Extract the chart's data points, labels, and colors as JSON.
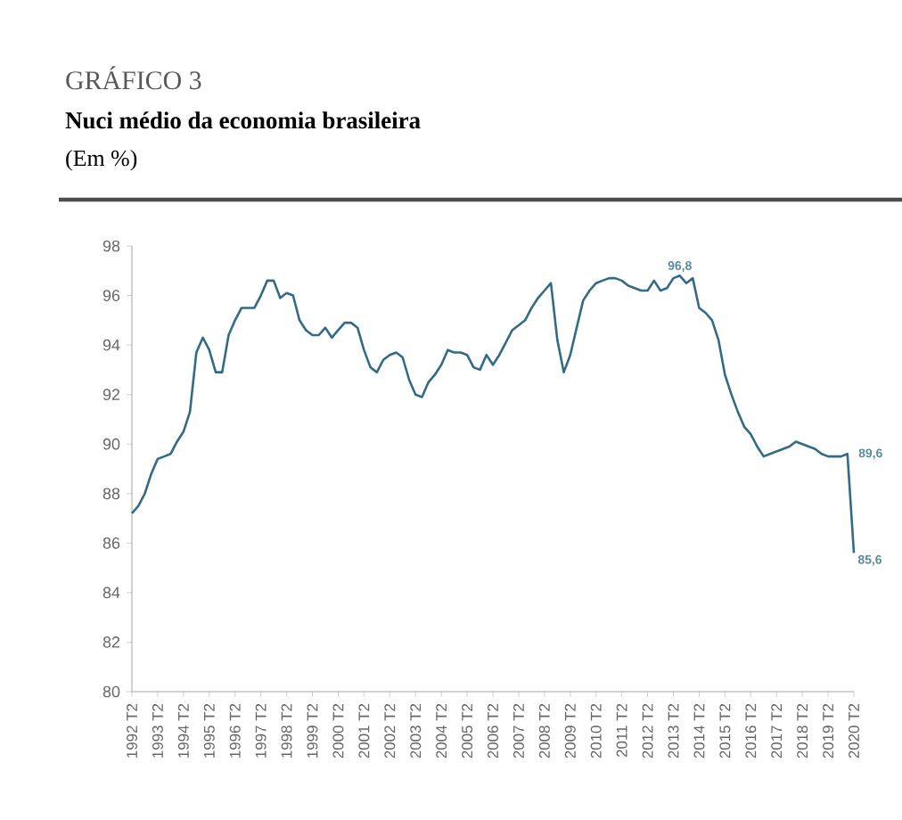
{
  "chart_data": {
    "type": "line",
    "annotations": [
      "GRÁFICO 3"
    ],
    "title": "Nuci médio da economia brasileira",
    "subtitle": "(Em %)",
    "categories": [
      "1992 T2",
      null,
      null,
      null,
      "1993 T2",
      null,
      null,
      null,
      "1994 T2",
      null,
      null,
      null,
      "1995 T2",
      null,
      null,
      null,
      "1996 T2",
      null,
      null,
      null,
      "1997 T2",
      null,
      null,
      null,
      "1998 T2",
      null,
      null,
      null,
      "1999 T2",
      null,
      null,
      null,
      "2000 T2",
      null,
      null,
      null,
      "2001 T2",
      null,
      null,
      null,
      "2002 T2",
      null,
      null,
      null,
      "2003 T2",
      null,
      null,
      null,
      "2004 T2",
      null,
      null,
      null,
      "2005 T2",
      null,
      null,
      null,
      "2006 T2",
      null,
      null,
      null,
      "2007 T2",
      null,
      null,
      null,
      "2008 T2",
      null,
      null,
      null,
      "2009 T2",
      null,
      null,
      null,
      "2010 T2",
      null,
      null,
      null,
      "2011 T2",
      null,
      null,
      null,
      "2012 T2",
      null,
      null,
      null,
      "2013 T2",
      null,
      null,
      null,
      "2014 T2",
      null,
      null,
      null,
      "2015 T2",
      null,
      null,
      null,
      "2016 T2",
      null,
      null,
      null,
      "2017 T2",
      null,
      null,
      null,
      "2018 T2",
      null,
      null,
      null,
      "2019 T2",
      null,
      null,
      null,
      "2020 T2"
    ],
    "values": [
      87.2,
      87.5,
      88.0,
      88.8,
      89.4,
      89.5,
      89.6,
      90.1,
      90.5,
      91.3,
      93.7,
      94.3,
      93.8,
      92.9,
      92.9,
      94.4,
      95.0,
      95.5,
      95.5,
      95.5,
      96.0,
      96.6,
      96.6,
      95.9,
      96.1,
      96.0,
      95.0,
      94.6,
      94.4,
      94.4,
      94.7,
      94.3,
      94.6,
      94.9,
      94.9,
      94.7,
      93.8,
      93.1,
      92.9,
      93.4,
      93.6,
      93.7,
      93.5,
      92.6,
      92.0,
      91.9,
      92.5,
      92.8,
      93.2,
      93.8,
      93.7,
      93.7,
      93.6,
      93.1,
      93.0,
      93.6,
      93.2,
      93.6,
      94.1,
      94.6,
      94.8,
      95.0,
      95.5,
      95.9,
      96.2,
      96.5,
      94.2,
      92.9,
      93.6,
      94.7,
      95.8,
      96.2,
      96.5,
      96.6,
      96.7,
      96.7,
      96.6,
      96.4,
      96.3,
      96.2,
      96.2,
      96.6,
      96.2,
      96.3,
      96.7,
      96.8,
      96.5,
      96.7,
      95.5,
      95.3,
      95.0,
      94.2,
      92.8,
      92.0,
      91.3,
      90.7,
      90.4,
      89.9,
      89.5,
      89.6,
      89.7,
      89.8,
      89.9,
      90.1,
      90.0,
      89.9,
      89.8,
      89.6,
      89.5,
      89.5,
      89.5,
      89.6,
      85.6
    ],
    "value_labels": [
      null,
      null,
      null,
      null,
      null,
      null,
      null,
      null,
      null,
      null,
      null,
      null,
      null,
      null,
      null,
      null,
      null,
      null,
      null,
      null,
      null,
      null,
      null,
      null,
      null,
      null,
      null,
      null,
      null,
      null,
      null,
      null,
      null,
      null,
      null,
      null,
      null,
      null,
      null,
      null,
      null,
      null,
      null,
      null,
      null,
      null,
      null,
      null,
      null,
      null,
      null,
      null,
      null,
      null,
      null,
      null,
      null,
      null,
      null,
      null,
      null,
      null,
      null,
      null,
      null,
      null,
      null,
      null,
      null,
      null,
      null,
      null,
      null,
      null,
      null,
      null,
      null,
      null,
      null,
      null,
      null,
      null,
      null,
      null,
      null,
      "96,8",
      null,
      null,
      null,
      null,
      null,
      null,
      null,
      null,
      null,
      null,
      null,
      null,
      null,
      null,
      null,
      null,
      null,
      null,
      null,
      null,
      null,
      null,
      null,
      null,
      null,
      "89,6",
      "85,6"
    ],
    "color": "#336b87",
    "ylim": [
      80,
      98
    ],
    "yticks": [
      80,
      82,
      84,
      86,
      88,
      90,
      92,
      94,
      96,
      98
    ]
  }
}
